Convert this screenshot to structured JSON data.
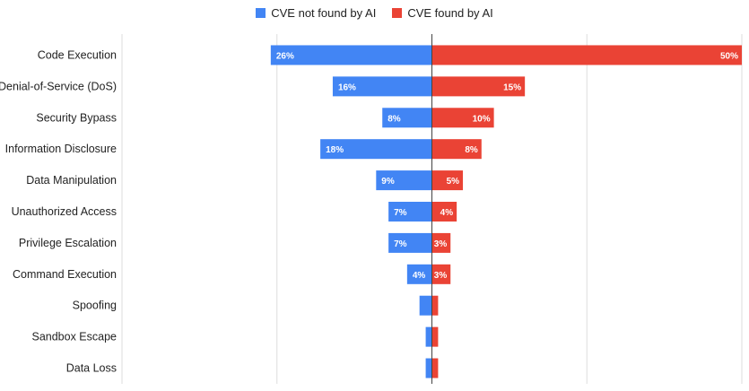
{
  "chart_data": {
    "type": "bar",
    "orientation": "horizontal-diverging",
    "categories": [
      "Code Execution",
      "Denial-of-Service (DoS)",
      "Security Bypass",
      "Information Disclosure",
      "Data Manipulation",
      "Unauthorized Access",
      "Privilege Escalation",
      "Command Execution",
      "Spoofing",
      "Sandbox Escape",
      "Data Loss"
    ],
    "series": [
      {
        "name": "CVE not found by AI",
        "color": "#4285f4",
        "side": "left",
        "values": [
          26,
          16,
          8,
          18,
          9,
          7,
          7,
          4,
          2,
          1,
          1
        ],
        "labels": [
          "26%",
          "16%",
          "8%",
          "18%",
          "9%",
          "7%",
          "7%",
          "4%",
          "",
          "",
          ""
        ]
      },
      {
        "name": "CVE found by AI",
        "color": "#ea4335",
        "side": "right",
        "values": [
          50,
          15,
          10,
          8,
          5,
          4,
          3,
          3,
          1,
          1,
          1
        ],
        "labels": [
          "50%",
          "15%",
          "10%",
          "8%",
          "5%",
          "4%",
          "3%",
          "3%",
          "",
          "",
          ""
        ]
      }
    ],
    "xlim": [
      -50,
      50
    ],
    "legend_position": "top",
    "grid": true
  }
}
